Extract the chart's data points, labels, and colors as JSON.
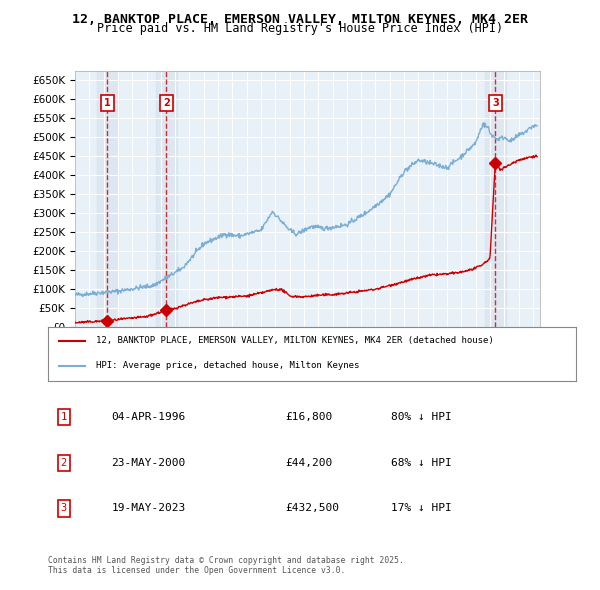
{
  "title": "12, BANKTOP PLACE, EMERSON VALLEY, MILTON KEYNES, MK4 2ER",
  "subtitle": "Price paid vs. HM Land Registry's House Price Index (HPI)",
  "transactions": [
    {
      "num": 1,
      "date_dec": 1996.26,
      "price": 16800,
      "label": "04-APR-1996",
      "pct": "80% ↓ HPI"
    },
    {
      "num": 2,
      "date_dec": 2000.39,
      "price": 44200,
      "label": "23-MAY-2000",
      "pct": "68% ↓ HPI"
    },
    {
      "num": 3,
      "date_dec": 2023.38,
      "price": 432500,
      "label": "19-MAY-2023",
      "pct": "17% ↓ HPI"
    }
  ],
  "legend_line1": "12, BANKTOP PLACE, EMERSON VALLEY, MILTON KEYNES, MK4 2ER (detached house)",
  "legend_line2": "HPI: Average price, detached house, Milton Keynes",
  "footer": "Contains HM Land Registry data © Crown copyright and database right 2025.\nThis data is licensed under the Open Government Licence v3.0.",
  "ylim": [
    0,
    675000
  ],
  "xlim_start": 1994.0,
  "xlim_end": 2026.5,
  "bg_color": "#e8eef5",
  "plot_bg": "#f0f4f8",
  "grid_color": "#ffffff",
  "red_color": "#cc0000",
  "blue_color": "#6699cc",
  "shade_color": "#d0dce8"
}
